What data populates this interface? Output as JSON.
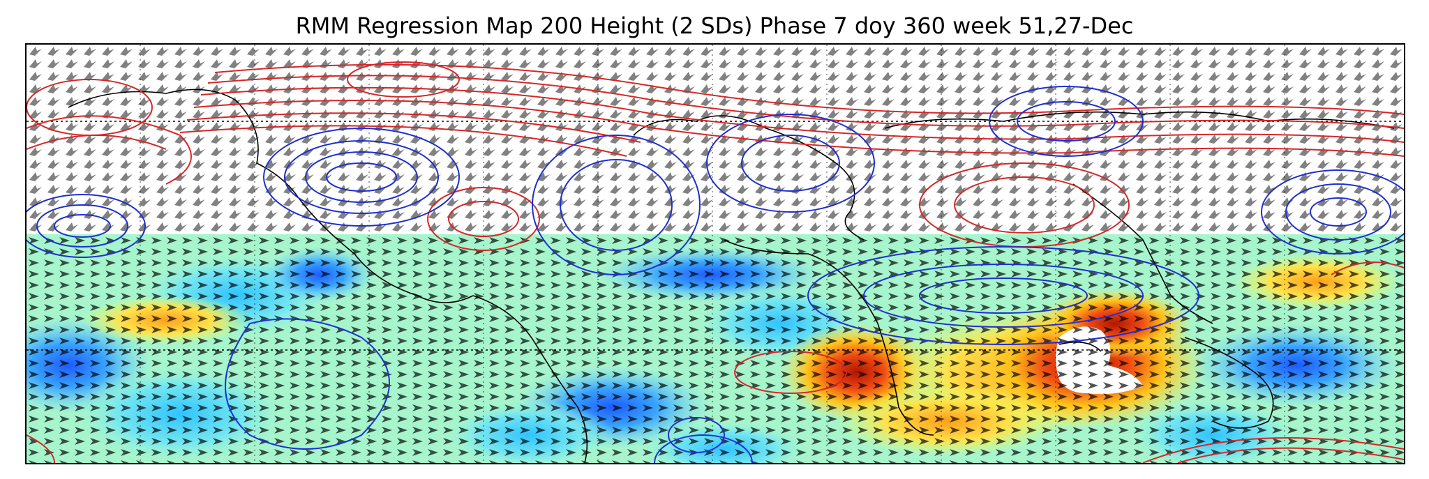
{
  "title": "RMM Regression Map 200 Height (2 SDs) Phase 7 doy 360 week 51,27-Dec",
  "colors": {
    "positive_contour": "#d62728",
    "negative_contour": "#1f2fd0",
    "coastline": "#000000",
    "gridline": "#000000",
    "shading_low": "#2b6bff",
    "shading_mid": "#98f5c8",
    "shading_high": "#c21b00"
  }
}
